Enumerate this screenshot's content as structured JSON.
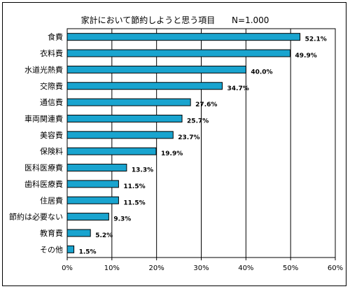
{
  "chart_data": {
    "type": "bar",
    "orientation": "horizontal",
    "title": "家計において節約しようと思う項目",
    "sample_size": "N=1.000",
    "categories": [
      "食費",
      "衣料費",
      "水道光熱費",
      "交際費",
      "通信費",
      "車両関連費",
      "美容費",
      "保険料",
      "医科医療費",
      "歯科医療費",
      "住居費",
      "節約は必要ない",
      "教育費",
      "その他"
    ],
    "values": [
      52.1,
      49.9,
      40.0,
      34.7,
      27.6,
      25.7,
      23.7,
      19.9,
      13.3,
      11.5,
      11.5,
      9.3,
      5.2,
      1.5
    ],
    "value_labels": [
      "52.1%",
      "49.9%",
      "40.0%",
      "34.7%",
      "27.6%",
      "25.7%",
      "23.7%",
      "19.9%",
      "13.3%",
      "11.5%",
      "11.5%",
      "9.3%",
      "5.2%",
      "1.5%"
    ],
    "xlim": [
      0,
      60
    ],
    "xticks": [
      0,
      10,
      20,
      30,
      40,
      50,
      60
    ],
    "xtick_labels": [
      "0%",
      "10%",
      "20%",
      "30%",
      "40%",
      "50%",
      "60%"
    ],
    "xlabel": "",
    "ylabel": "",
    "grid": "vertical",
    "bar_color": "#19a4cf"
  }
}
